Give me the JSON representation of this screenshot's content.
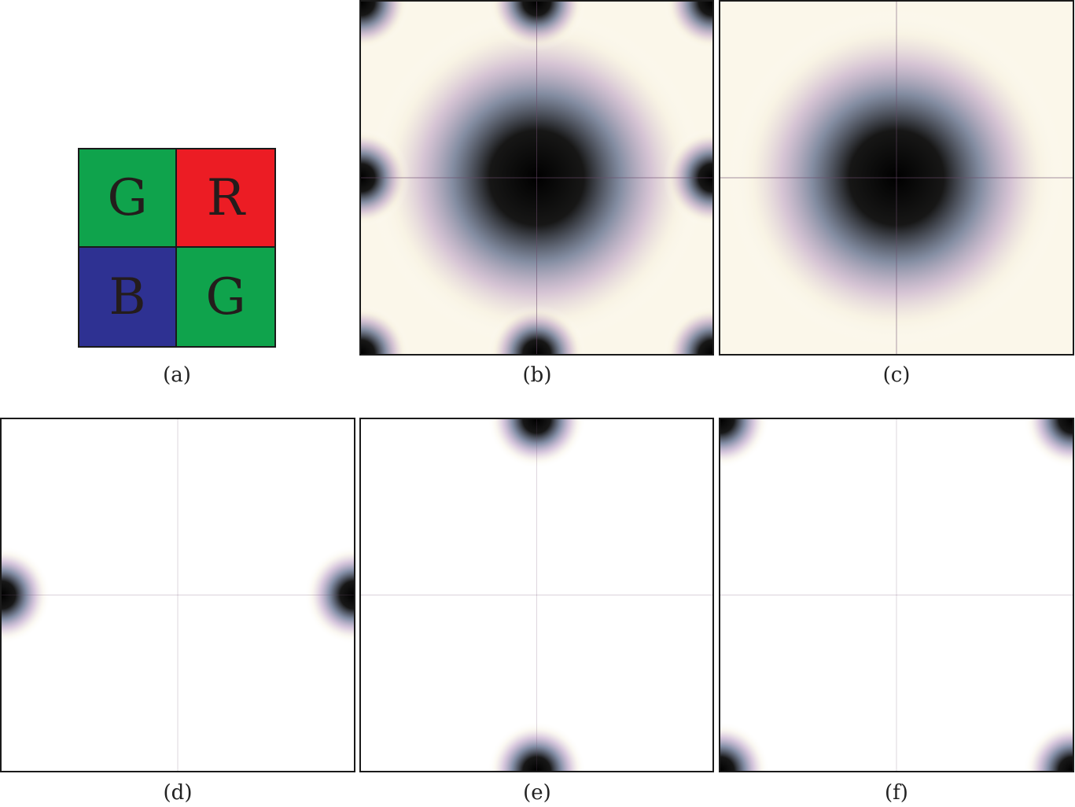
{
  "bayer_pattern": {
    "cells": [
      {
        "letter": "G",
        "color": "#0fa34c"
      },
      {
        "letter": "R",
        "color": "#ec1c24"
      },
      {
        "letter": "B",
        "color": "#2e3192"
      },
      {
        "letter": "G",
        "color": "#0fa34c"
      }
    ]
  },
  "captions": {
    "a": "(a)",
    "b": "(b)",
    "c": "(c)",
    "d": "(d)",
    "e": "(e)",
    "f": "(f)"
  },
  "spectra": {
    "b": {
      "peaks": [
        "center",
        "corners",
        "top-mid",
        "bottom-mid",
        "left-mid",
        "right-mid"
      ]
    },
    "c": {
      "peaks": [
        "center"
      ]
    },
    "d": {
      "peaks": [
        "left-mid",
        "right-mid"
      ]
    },
    "e": {
      "peaks": [
        "top-mid",
        "bottom-mid"
      ]
    },
    "f": {
      "peaks": [
        "corners"
      ]
    }
  }
}
